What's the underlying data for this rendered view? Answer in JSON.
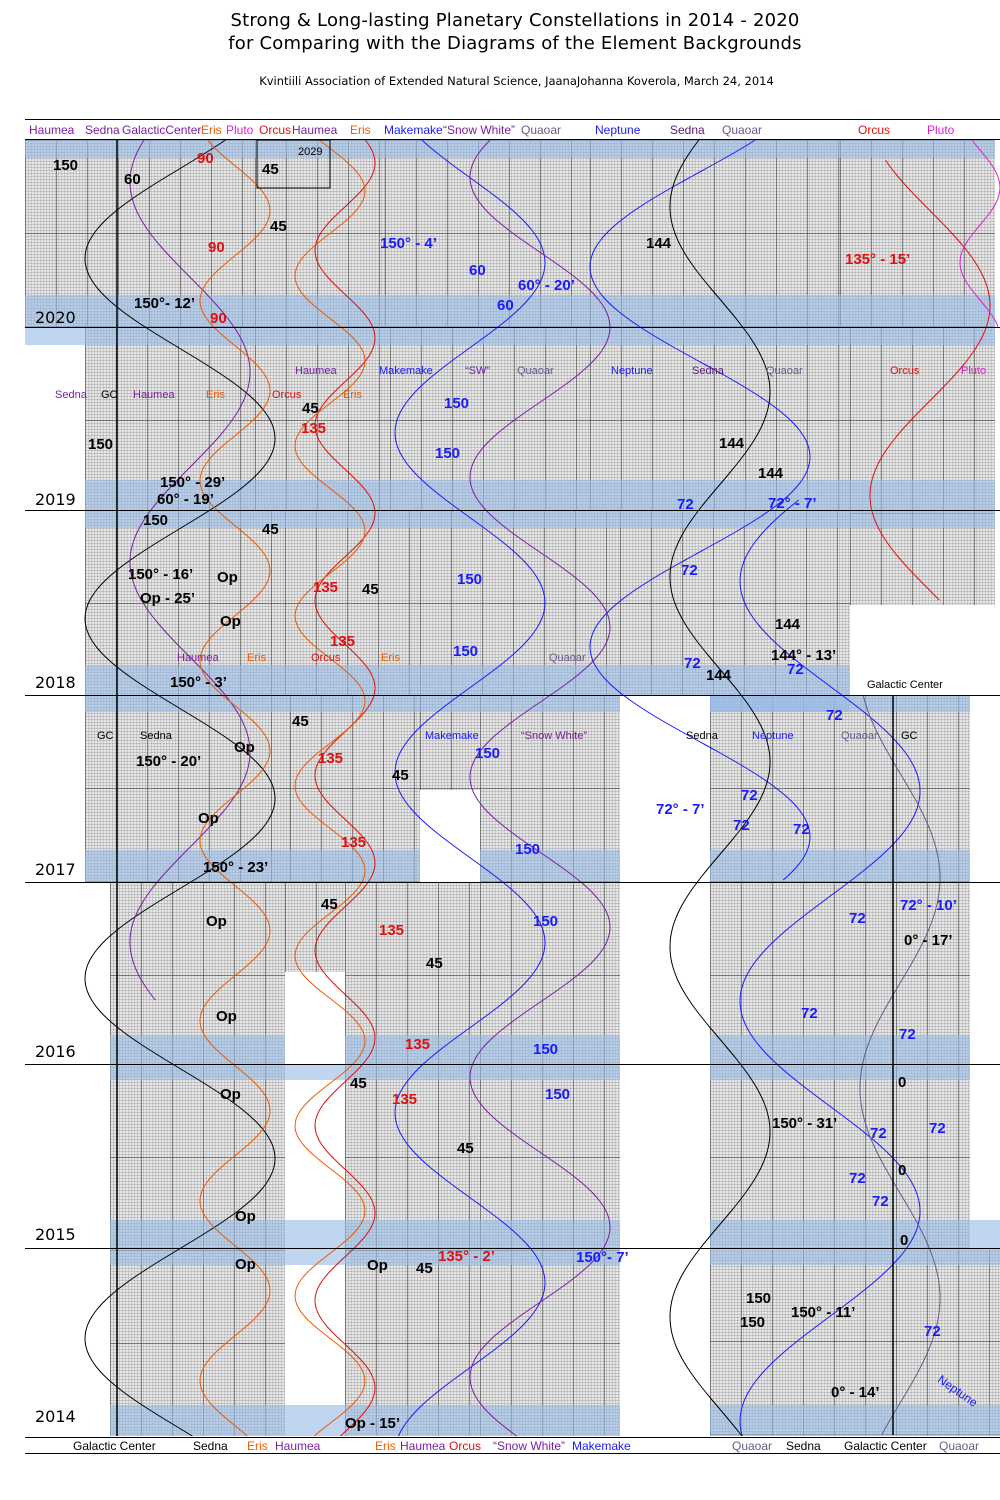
{
  "header": {
    "title_line1": "Strong & Long-lasting Planetary Constellations in 2014 - 2020",
    "title_line2": "for Comparing with the Diagrams of the Element Backgrounds",
    "credit": "Kvintiili Association of Extended Natural Science,  JaanaJohanna Koverola, March 24, 2014"
  },
  "colors": {
    "black": "#000000",
    "purple": "#7a1fa2",
    "orange": "#ee5a00",
    "red": "#e01010",
    "blue": "#1a1aff",
    "grayviolet": "#6a5a8a",
    "magenta": "#e020d0",
    "darkpurple": "#5a1a7a",
    "band": "#a9c4e8",
    "grid": "#e6e6e6"
  },
  "top_legend": [
    {
      "text": "Haumea",
      "color": "purple"
    },
    {
      "text": "Sedna",
      "color": "purple"
    },
    {
      "text": "GalacticCenter",
      "color": "purple"
    },
    {
      "text": "Eris",
      "color": "orange"
    },
    {
      "text": "Pluto",
      "color": "magenta"
    },
    {
      "text": "Orcus",
      "color": "red"
    },
    {
      "text": "Haumea",
      "color": "purple"
    },
    {
      "text": "Eris",
      "color": "orange"
    },
    {
      "text": "Makemake",
      "color": "blue"
    },
    {
      "text": "“Snow White”",
      "color": "purple"
    },
    {
      "text": "Quaoar",
      "color": "grayviolet"
    },
    {
      "text": "Neptune",
      "color": "blue"
    },
    {
      "text": "Sedna",
      "color": "darkpurple"
    },
    {
      "text": "Quaoar",
      "color": "grayviolet"
    },
    {
      "text": "Orcus",
      "color": "red"
    },
    {
      "text": "Pluto",
      "color": "magenta"
    }
  ],
  "bottom_legend": [
    {
      "text": "Galactic Center",
      "color": "black"
    },
    {
      "text": "Sedna",
      "color": "black"
    },
    {
      "text": "Eris",
      "color": "orange"
    },
    {
      "text": "Haumea",
      "color": "purple"
    },
    {
      "text": "Eris",
      "color": "orange"
    },
    {
      "text": "Haumea",
      "color": "purple"
    },
    {
      "text": "Orcus",
      "color": "red"
    },
    {
      "text": "“Snow White”",
      "color": "purple"
    },
    {
      "text": "Makemake",
      "color": "blue"
    },
    {
      "text": "Quaoar",
      "color": "grayviolet"
    },
    {
      "text": "Sedna",
      "color": "black"
    },
    {
      "text": "Galactic Center",
      "color": "black"
    },
    {
      "text": "Quaoar",
      "color": "grayviolet"
    }
  ],
  "years": [
    "2020",
    "2019",
    "2018",
    "2017",
    "2016",
    "2015",
    "2014"
  ],
  "panel_labels": [
    {
      "text": "Sedna",
      "color": "purple"
    },
    {
      "text": "GC",
      "color": "black"
    },
    {
      "text": "Haumea",
      "color": "purple"
    },
    {
      "text": "Eris",
      "color": "orange"
    },
    {
      "text": "Orcus",
      "color": "red"
    },
    {
      "text": "Eris",
      "color": "orange"
    },
    {
      "text": "Haumea",
      "color": "purple"
    },
    {
      "text": "Makemake",
      "color": "blue"
    },
    {
      "text": "“SW”",
      "color": "purple"
    },
    {
      "text": "Quaoar",
      "color": "grayviolet"
    },
    {
      "text": "Neptune",
      "color": "blue"
    },
    {
      "text": "Sedna",
      "color": "darkpurple"
    },
    {
      "text": "Quaoar",
      "color": "grayviolet"
    },
    {
      "text": "Orcus",
      "color": "red"
    },
    {
      "text": "Pluto",
      "color": "magenta"
    },
    {
      "text": "Haumea",
      "color": "purple"
    },
    {
      "text": "Eris",
      "color": "orange"
    },
    {
      "text": "Orcus",
      "color": "red"
    },
    {
      "text": "Eris",
      "color": "orange"
    },
    {
      "text": "Quaoar",
      "color": "grayviolet"
    },
    {
      "text": "Galactic Center",
      "color": "black"
    },
    {
      "text": "GC",
      "color": "black"
    },
    {
      "text": "Sedna",
      "color": "black"
    },
    {
      "text": "Makemake",
      "color": "blue"
    },
    {
      "text": "“Snow White”",
      "color": "purple"
    },
    {
      "text": "Sedna",
      "color": "black"
    },
    {
      "text": "Neptune",
      "color": "blue"
    },
    {
      "text": "Quaoar",
      "color": "grayviolet"
    },
    {
      "text": "GC",
      "color": "black"
    },
    {
      "text": "2029",
      "color": "black"
    },
    {
      "text": "Neptune",
      "color": "blue"
    }
  ],
  "annotations": [
    {
      "text": "150",
      "color": "black"
    },
    {
      "text": "60",
      "color": "black"
    },
    {
      "text": "90",
      "color": "red"
    },
    {
      "text": "45",
      "color": "black"
    },
    {
      "text": "90",
      "color": "red"
    },
    {
      "text": "45",
      "color": "black"
    },
    {
      "text": "150° - 4’",
      "color": "blue"
    },
    {
      "text": "60",
      "color": "blue"
    },
    {
      "text": "60° - 20’",
      "color": "blue"
    },
    {
      "text": "60",
      "color": "blue"
    },
    {
      "text": "144",
      "color": "black"
    },
    {
      "text": "135° - 15’",
      "color": "red"
    },
    {
      "text": "150°- 12’",
      "color": "black"
    },
    {
      "text": "90",
      "color": "red"
    },
    {
      "text": "45",
      "color": "black"
    },
    {
      "text": "135",
      "color": "red"
    },
    {
      "text": "150",
      "color": "blue"
    },
    {
      "text": "150",
      "color": "black"
    },
    {
      "text": "150",
      "color": "blue"
    },
    {
      "text": "144",
      "color": "black"
    },
    {
      "text": "144",
      "color": "black"
    },
    {
      "text": "150° - 29’",
      "color": "black"
    },
    {
      "text": "60° - 19’",
      "color": "black"
    },
    {
      "text": "72",
      "color": "blue"
    },
    {
      "text": "72° - 7’",
      "color": "blue"
    },
    {
      "text": "150",
      "color": "black"
    },
    {
      "text": "45",
      "color": "black"
    },
    {
      "text": "150° - 16’",
      "color": "black"
    },
    {
      "text": "Op",
      "color": "black"
    },
    {
      "text": "Op - 25’",
      "color": "black"
    },
    {
      "text": "Op",
      "color": "black"
    },
    {
      "text": "135",
      "color": "red"
    },
    {
      "text": "45",
      "color": "black"
    },
    {
      "text": "150",
      "color": "blue"
    },
    {
      "text": "72",
      "color": "blue"
    },
    {
      "text": "135",
      "color": "red"
    },
    {
      "text": "150",
      "color": "blue"
    },
    {
      "text": "144",
      "color": "black"
    },
    {
      "text": "144° - 13’",
      "color": "black"
    },
    {
      "text": "72",
      "color": "blue"
    },
    {
      "text": "72",
      "color": "blue"
    },
    {
      "text": "144",
      "color": "black"
    },
    {
      "text": "150° - 3’",
      "color": "black"
    },
    {
      "text": "45",
      "color": "black"
    },
    {
      "text": "72",
      "color": "blue"
    },
    {
      "text": "Op",
      "color": "black"
    },
    {
      "text": "150",
      "color": "blue"
    },
    {
      "text": "135",
      "color": "red"
    },
    {
      "text": "150° - 20’",
      "color": "black"
    },
    {
      "text": "45",
      "color": "black"
    },
    {
      "text": "72",
      "color": "blue"
    },
    {
      "text": "72° - 7’",
      "color": "blue"
    },
    {
      "text": "Op",
      "color": "black"
    },
    {
      "text": "72",
      "color": "blue"
    },
    {
      "text": "72",
      "color": "blue"
    },
    {
      "text": "135",
      "color": "red"
    },
    {
      "text": "150",
      "color": "blue"
    },
    {
      "text": "150° - 23’",
      "color": "black"
    },
    {
      "text": "45",
      "color": "black"
    },
    {
      "text": "72° - 10’",
      "color": "blue"
    },
    {
      "text": "Op",
      "color": "black"
    },
    {
      "text": "150",
      "color": "blue"
    },
    {
      "text": "72",
      "color": "blue"
    },
    {
      "text": "135",
      "color": "red"
    },
    {
      "text": "0° - 17’",
      "color": "black"
    },
    {
      "text": "45",
      "color": "black"
    },
    {
      "text": "Op",
      "color": "black"
    },
    {
      "text": "72",
      "color": "blue"
    },
    {
      "text": "72",
      "color": "blue"
    },
    {
      "text": "135",
      "color": "red"
    },
    {
      "text": "150",
      "color": "blue"
    },
    {
      "text": "0",
      "color": "black"
    },
    {
      "text": "45",
      "color": "black"
    },
    {
      "text": "Op",
      "color": "black"
    },
    {
      "text": "135",
      "color": "red"
    },
    {
      "text": "150",
      "color": "blue"
    },
    {
      "text": "150° - 31’",
      "color": "black"
    },
    {
      "text": "72",
      "color": "blue"
    },
    {
      "text": "72",
      "color": "blue"
    },
    {
      "text": "45",
      "color": "black"
    },
    {
      "text": "72",
      "color": "blue"
    },
    {
      "text": "0",
      "color": "black"
    },
    {
      "text": "72",
      "color": "blue"
    },
    {
      "text": "Op",
      "color": "black"
    },
    {
      "text": "0",
      "color": "black"
    },
    {
      "text": "Op",
      "color": "black"
    },
    {
      "text": "Op",
      "color": "black"
    },
    {
      "text": "45",
      "color": "black"
    },
    {
      "text": "135° - 2’",
      "color": "red"
    },
    {
      "text": "150°- 7’",
      "color": "blue"
    },
    {
      "text": "150",
      "color": "black"
    },
    {
      "text": "150",
      "color": "black"
    },
    {
      "text": "150° - 11’",
      "color": "black"
    },
    {
      "text": "72",
      "color": "blue"
    },
    {
      "text": "0° - 14’",
      "color": "black"
    },
    {
      "text": "Op - 15’",
      "color": "black"
    }
  ]
}
